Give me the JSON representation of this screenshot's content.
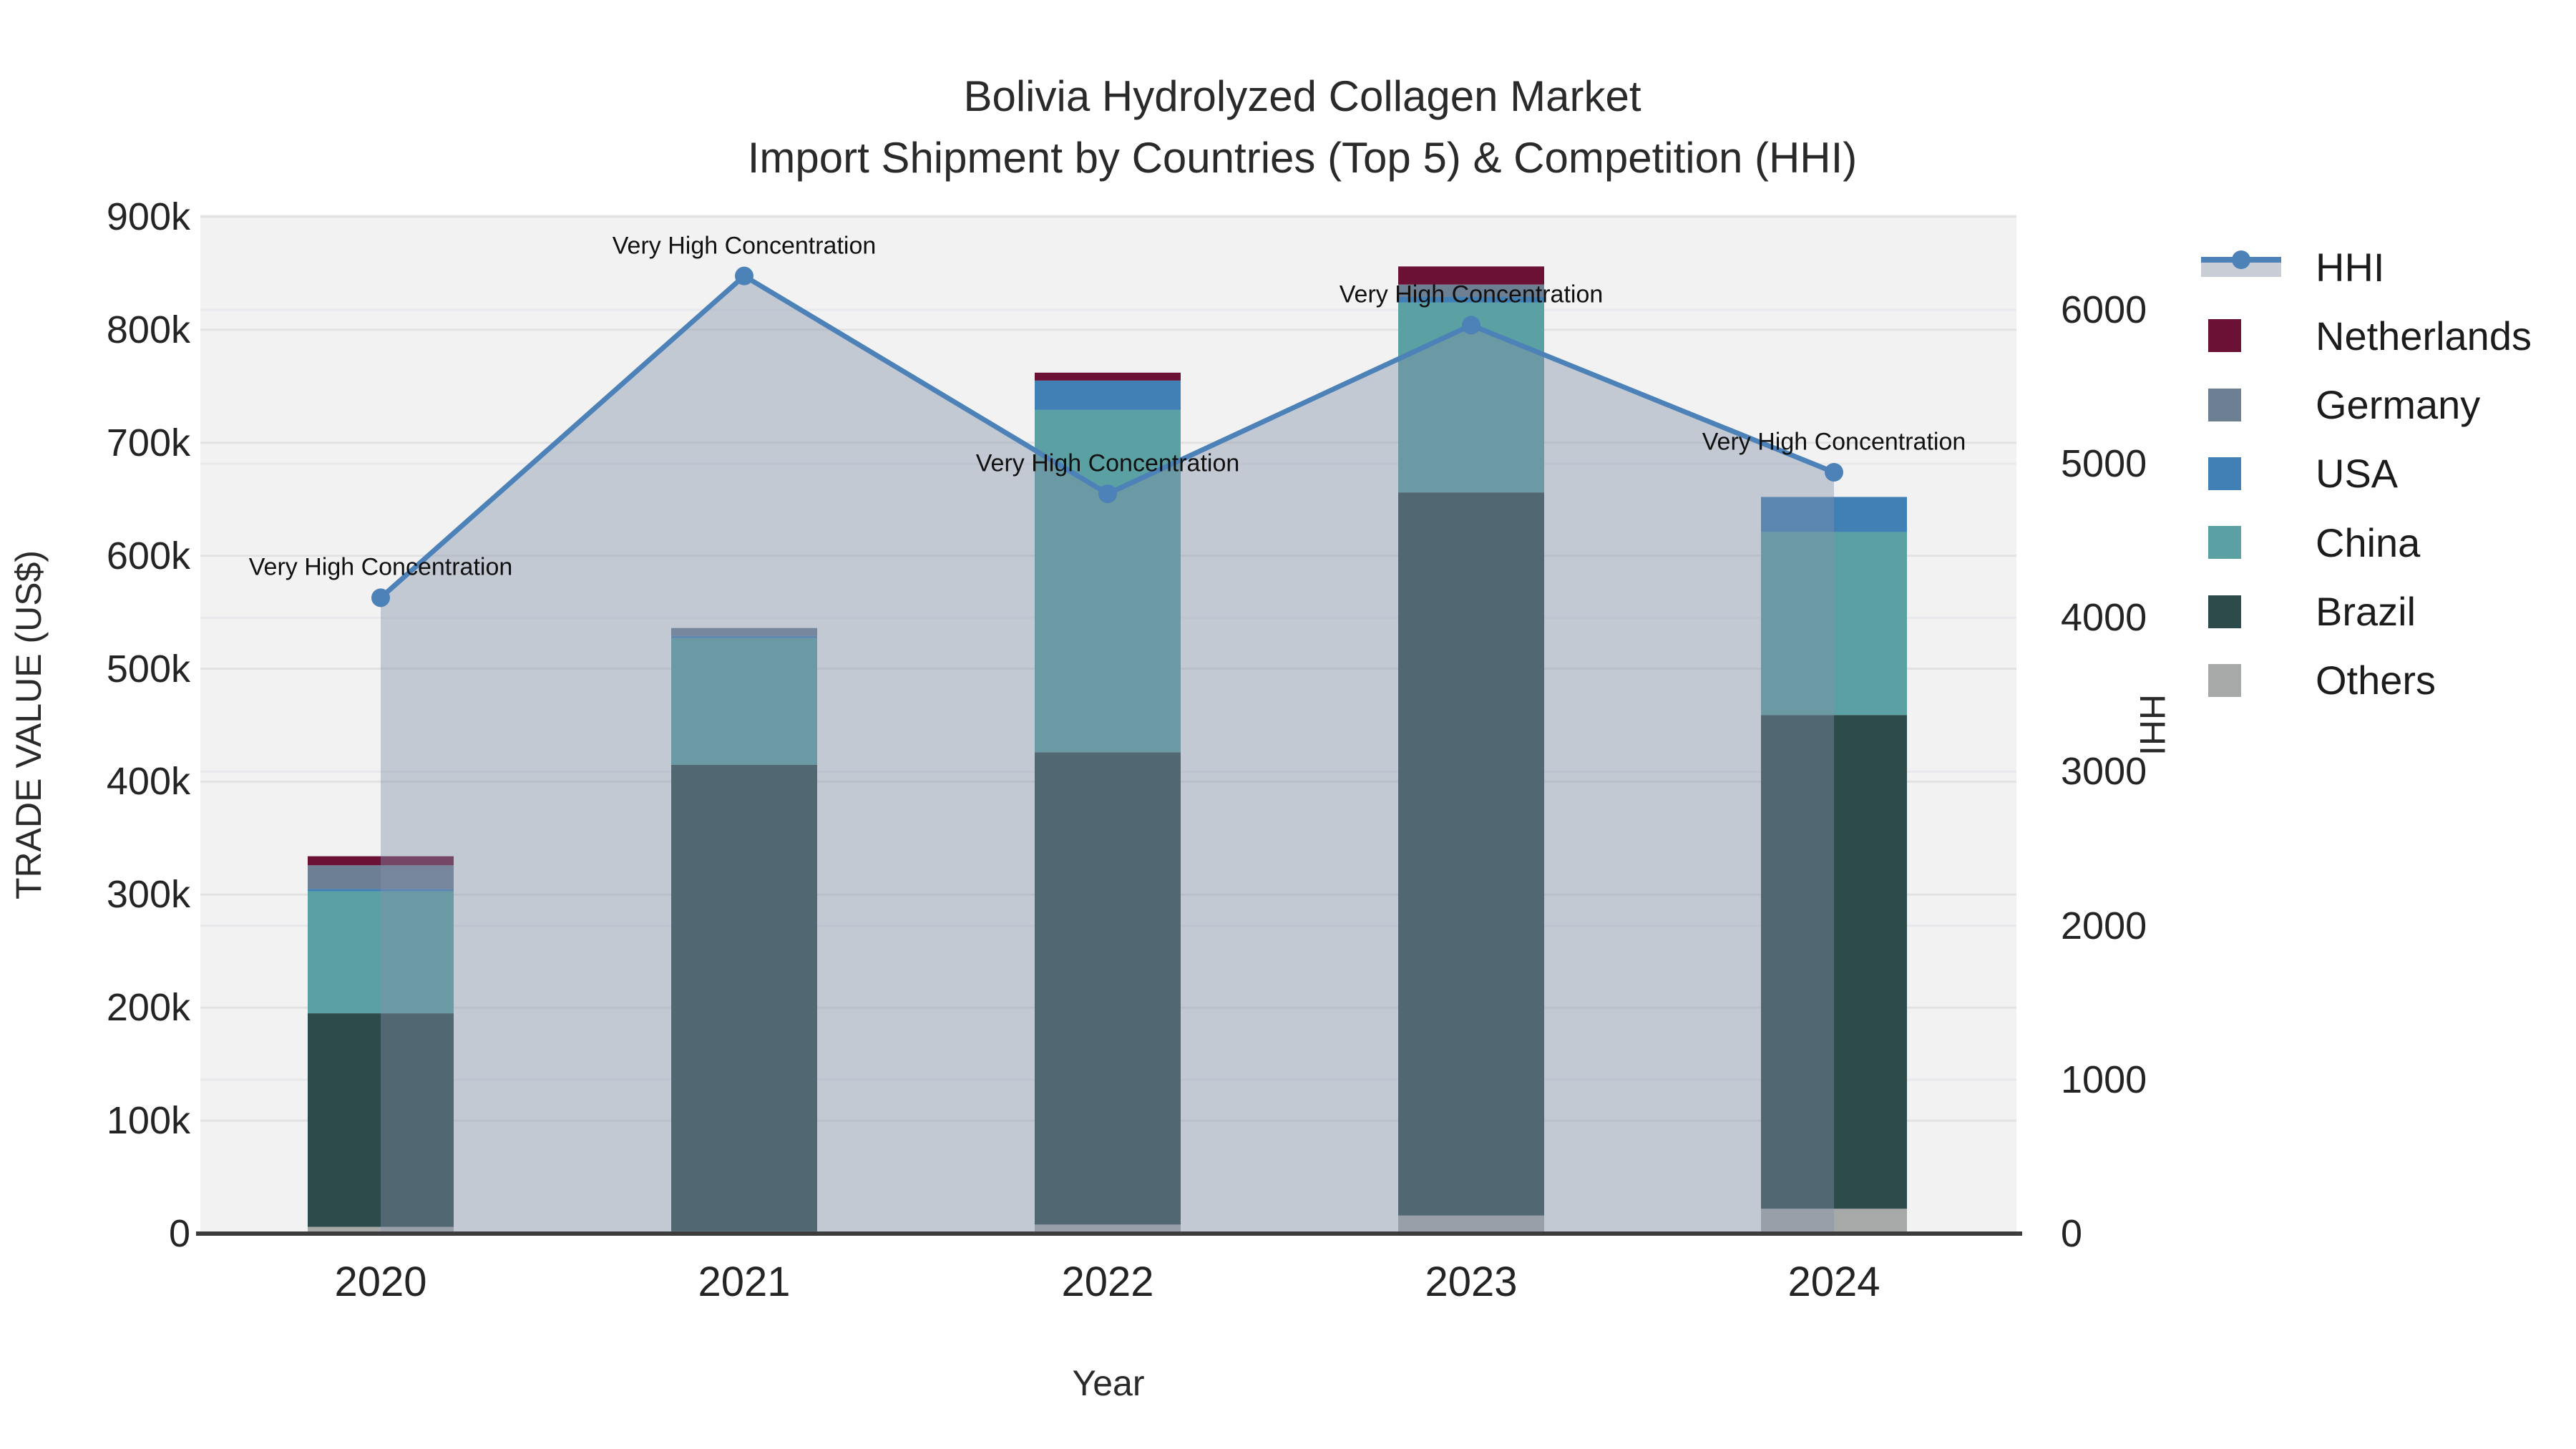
{
  "title": {
    "line1": "Bolivia Hydrolyzed Collagen Market",
    "line2": "Import Shipment by Countries (Top 5) & Competition (HHI)"
  },
  "axes": {
    "x_title": "Year",
    "y_left_title": "TRADE VALUE (US$)",
    "y_right_title": "HHI",
    "y_left_ticks": [
      "0",
      "100k",
      "200k",
      "300k",
      "400k",
      "500k",
      "600k",
      "700k",
      "800k",
      "900k"
    ],
    "y_right_ticks": [
      "0",
      "1000",
      "2000",
      "3000",
      "4000",
      "5000",
      "6000"
    ],
    "x_ticks": [
      "2020",
      "2021",
      "2022",
      "2023",
      "2024"
    ]
  },
  "legend": {
    "items": [
      {
        "label": "HHI",
        "type": "line",
        "color": "#4c82b8"
      },
      {
        "label": "Netherlands",
        "type": "swatch",
        "color": "#6b1135"
      },
      {
        "label": "Germany",
        "type": "swatch",
        "color": "#6d7f93"
      },
      {
        "label": "USA",
        "type": "swatch",
        "color": "#4180b5"
      },
      {
        "label": "China",
        "type": "swatch",
        "color": "#5ba1a3"
      },
      {
        "label": "Brazil",
        "type": "swatch",
        "color": "#2d4b4b"
      },
      {
        "label": "Others",
        "type": "swatch",
        "color": "#a7a9a8"
      }
    ]
  },
  "chart_data": {
    "type": "bar+line",
    "title": "Bolivia Hydrolyzed Collagen Market — Import Shipment by Countries (Top 5) & Competition (HHI)",
    "categories": [
      "2020",
      "2021",
      "2022",
      "2023",
      "2024"
    ],
    "bar_unit": "US$ thousands",
    "stacked": true,
    "series": [
      {
        "name": "Others",
        "color": "#a7a9a8",
        "values": [
          6,
          2,
          8,
          16,
          22
        ]
      },
      {
        "name": "Brazil",
        "color": "#2d4b4b",
        "values": [
          189,
          413,
          418,
          640,
          437
        ]
      },
      {
        "name": "China",
        "color": "#5ba1a3",
        "values": [
          108,
          112,
          303,
          168,
          162
        ]
      },
      {
        "name": "USA",
        "color": "#4180b5",
        "values": [
          2,
          2,
          26,
          5,
          31
        ]
      },
      {
        "name": "Germany",
        "color": "#6d7f93",
        "values": [
          21,
          7,
          0,
          11,
          0
        ]
      },
      {
        "name": "Netherlands",
        "color": "#6b1135",
        "values": [
          8,
          0,
          7,
          16,
          0
        ]
      }
    ],
    "bar_totals": [
      334,
      536,
      762,
      856,
      652
    ],
    "line_series": {
      "name": "HHI",
      "color": "#4c82b8",
      "fill_color": "rgba(130,145,170,0.42)",
      "values": [
        4130,
        6220,
        4805,
        5900,
        4945
      ]
    },
    "annotations": [
      {
        "x": "2020",
        "text": "Very High Concentration"
      },
      {
        "x": "2021",
        "text": "Very High Concentration"
      },
      {
        "x": "2022",
        "text": "Very High Concentration"
      },
      {
        "x": "2023",
        "text": "Very High Concentration"
      },
      {
        "x": "2024",
        "text": "Very High Concentration"
      }
    ],
    "xlabel": "Year",
    "ylabel": "TRADE VALUE (US$)",
    "y2label": "HHI",
    "y_left_range": [
      0,
      900000
    ],
    "y_right_range": [
      0,
      6600
    ],
    "grid": true,
    "legend_position": "right"
  }
}
